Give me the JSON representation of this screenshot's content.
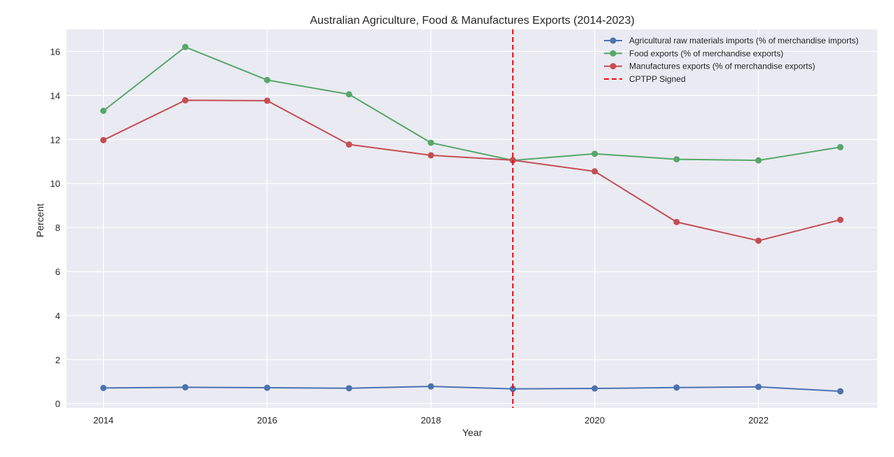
{
  "chart_data": {
    "type": "line",
    "title": "Australian Agriculture, Food & Manufactures Exports (2014-2023)",
    "xlabel": "Year",
    "ylabel": "Percent",
    "x": [
      2014,
      2015,
      2016,
      2017,
      2018,
      2019,
      2020,
      2021,
      2022,
      2023
    ],
    "xlim": [
      2013.55,
      2023.45
    ],
    "ylim": [
      -0.2,
      17.0
    ],
    "x_ticks": [
      2014,
      2016,
      2018,
      2020,
      2022
    ],
    "y_ticks": [
      0,
      2,
      4,
      6,
      8,
      10,
      12,
      14,
      16
    ],
    "grid": true,
    "legend_position": "top-right",
    "series": [
      {
        "name": "Agricultural raw materials imports (% of merchandise imports)",
        "color": "#4c72b0",
        "values": [
          0.71,
          0.74,
          0.72,
          0.7,
          0.78,
          0.67,
          0.69,
          0.73,
          0.76,
          0.56
        ]
      },
      {
        "name": "Food exports (% of merchandise exports)",
        "color": "#55a868",
        "values": [
          13.3,
          16.2,
          14.7,
          14.05,
          11.85,
          11.05,
          11.35,
          11.1,
          11.05,
          11.65
        ]
      },
      {
        "name": "Manufactures exports (% of merchandise exports)",
        "color": "#c44e52",
        "values": [
          11.97,
          13.78,
          13.76,
          11.77,
          11.28,
          11.06,
          10.55,
          8.25,
          7.4,
          8.35
        ]
      }
    ],
    "reference_lines": [
      {
        "name": "CPTPP Signed",
        "x": 2019,
        "color": "#ff0000",
        "style": "dashed"
      }
    ]
  }
}
